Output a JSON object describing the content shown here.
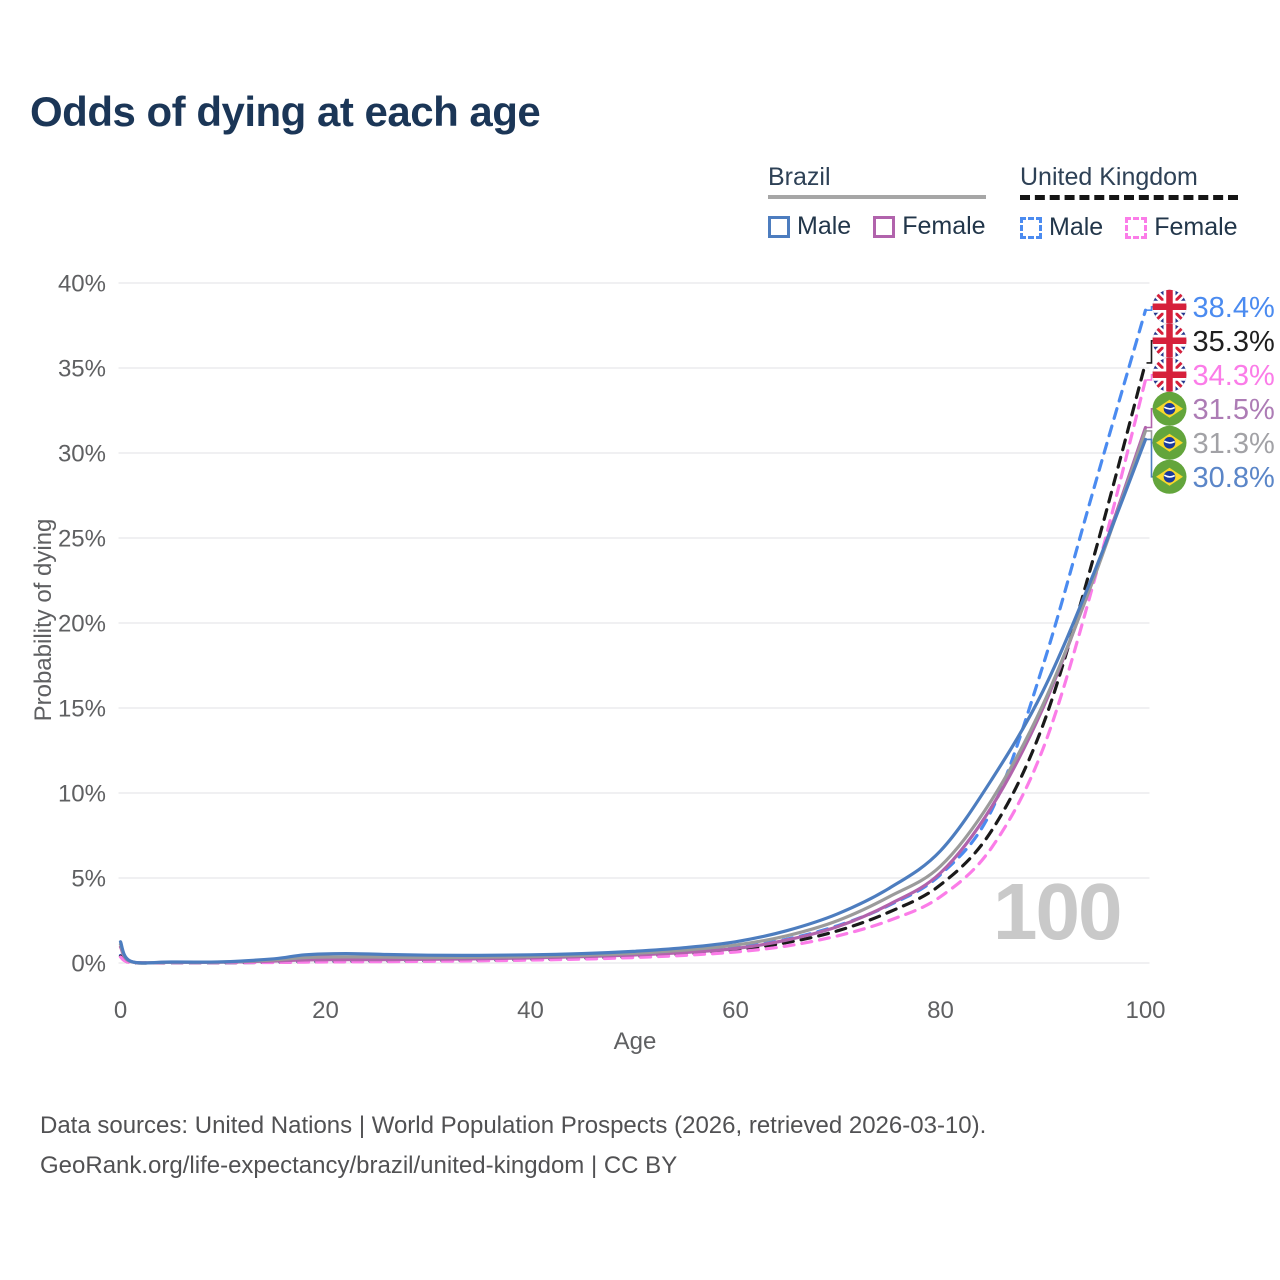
{
  "title": "Odds of dying at each age",
  "watermark": "100",
  "legend": {
    "groups": [
      {
        "label": "Brazil",
        "underline_style": "solid",
        "underline_color": "#a6a6a6",
        "items": [
          {
            "label": "Male",
            "color": "#4d7dbf",
            "dashed": false
          },
          {
            "label": "Female",
            "color": "#b163ac",
            "dashed": false
          }
        ]
      },
      {
        "label": "United Kingdom",
        "underline_style": "dashed",
        "underline_color": "#151515",
        "items": [
          {
            "label": "Male",
            "color": "#4b8bf0",
            "dashed": true
          },
          {
            "label": "Female",
            "color": "#fb7ce8",
            "dashed": true
          }
        ]
      }
    ]
  },
  "chart_data": {
    "type": "line",
    "xlabel": "Age",
    "ylabel": "Probability of dying",
    "xlim": [
      0,
      100
    ],
    "ylim": [
      0,
      40
    ],
    "x_ticks": [
      0,
      20,
      40,
      60,
      80,
      100
    ],
    "y_ticks": [
      "0%",
      "5%",
      "10%",
      "15%",
      "20%",
      "25%",
      "30%",
      "35%",
      "40%"
    ],
    "grid": "horizontal-only",
    "grid_color": "#ebebee",
    "ages": [
      0,
      1,
      5,
      10,
      15,
      18,
      22,
      26,
      30,
      35,
      40,
      45,
      50,
      55,
      60,
      65,
      70,
      75,
      80,
      85,
      90,
      95,
      100
    ],
    "series": [
      {
        "name": "United Kingdom Male",
        "flag": "uk",
        "color": "#4b8bf0",
        "label_color": "#4b8bf0",
        "dash": true,
        "end_label": "38.4%",
        "end_value": 38.4,
        "values": [
          0.45,
          0.04,
          0.02,
          0.02,
          0.05,
          0.09,
          0.11,
          0.13,
          0.15,
          0.18,
          0.22,
          0.3,
          0.42,
          0.6,
          0.9,
          1.4,
          2.2,
          3.4,
          5.2,
          9.0,
          17.5,
          28.0,
          38.4
        ]
      },
      {
        "name": "United Kingdom Average",
        "flag": "uk",
        "color": "#1a1a1a",
        "label_color": "#1f1f1f",
        "dash": true,
        "end_label": "35.3%",
        "end_value": 35.3,
        "values": [
          0.4,
          0.03,
          0.02,
          0.02,
          0.04,
          0.07,
          0.09,
          0.1,
          0.12,
          0.15,
          0.19,
          0.26,
          0.36,
          0.52,
          0.78,
          1.2,
          1.9,
          3.0,
          4.6,
          7.8,
          14.0,
          24.0,
          35.3
        ]
      },
      {
        "name": "United Kingdom Female",
        "flag": "uk",
        "color": "#fb7ce8",
        "label_color": "#fb7ce8",
        "dash": true,
        "end_label": "34.3%",
        "end_value": 34.3,
        "values": [
          0.35,
          0.03,
          0.02,
          0.02,
          0.03,
          0.05,
          0.07,
          0.08,
          0.1,
          0.13,
          0.17,
          0.23,
          0.32,
          0.45,
          0.65,
          1.0,
          1.6,
          2.5,
          3.9,
          6.8,
          12.6,
          22.5,
          34.3
        ]
      },
      {
        "name": "Brazil Female",
        "flag": "br",
        "color": "#b163ac",
        "label_color": "#ad7cb5",
        "dash": false,
        "end_label": "31.5%",
        "end_value": 31.5,
        "values": [
          0.95,
          0.08,
          0.04,
          0.05,
          0.12,
          0.18,
          0.2,
          0.2,
          0.22,
          0.25,
          0.3,
          0.37,
          0.47,
          0.62,
          0.85,
          1.35,
          2.15,
          3.45,
          5.3,
          9.2,
          15.0,
          22.8,
          31.5
        ]
      },
      {
        "name": "Brazil Average",
        "flag": "br",
        "color": "#9b9b9b",
        "label_color": "#a2a2a6",
        "dash": false,
        "end_label": "31.3%",
        "end_value": 31.3,
        "values": [
          1.1,
          0.09,
          0.05,
          0.06,
          0.18,
          0.32,
          0.36,
          0.34,
          0.32,
          0.34,
          0.38,
          0.45,
          0.57,
          0.76,
          1.05,
          1.6,
          2.5,
          3.9,
          5.7,
          9.6,
          15.2,
          22.7,
          31.3
        ]
      },
      {
        "name": "Brazil Male",
        "flag": "br",
        "color": "#4d7dbf",
        "label_color": "#5b86c8",
        "dash": false,
        "end_label": "30.8%",
        "end_value": 30.8,
        "values": [
          1.25,
          0.1,
          0.06,
          0.07,
          0.25,
          0.48,
          0.55,
          0.5,
          0.46,
          0.45,
          0.48,
          0.55,
          0.68,
          0.9,
          1.25,
          1.9,
          2.9,
          4.4,
          6.6,
          10.8,
          16.0,
          23.0,
          30.8
        ]
      }
    ]
  },
  "footer": {
    "line1": "Data sources: United Nations | World Population Prospects (2026, retrieved 2026-03-10).",
    "line2": "GeoRank.org/life-expectancy/brazil/united-kingdom | CC BY"
  }
}
